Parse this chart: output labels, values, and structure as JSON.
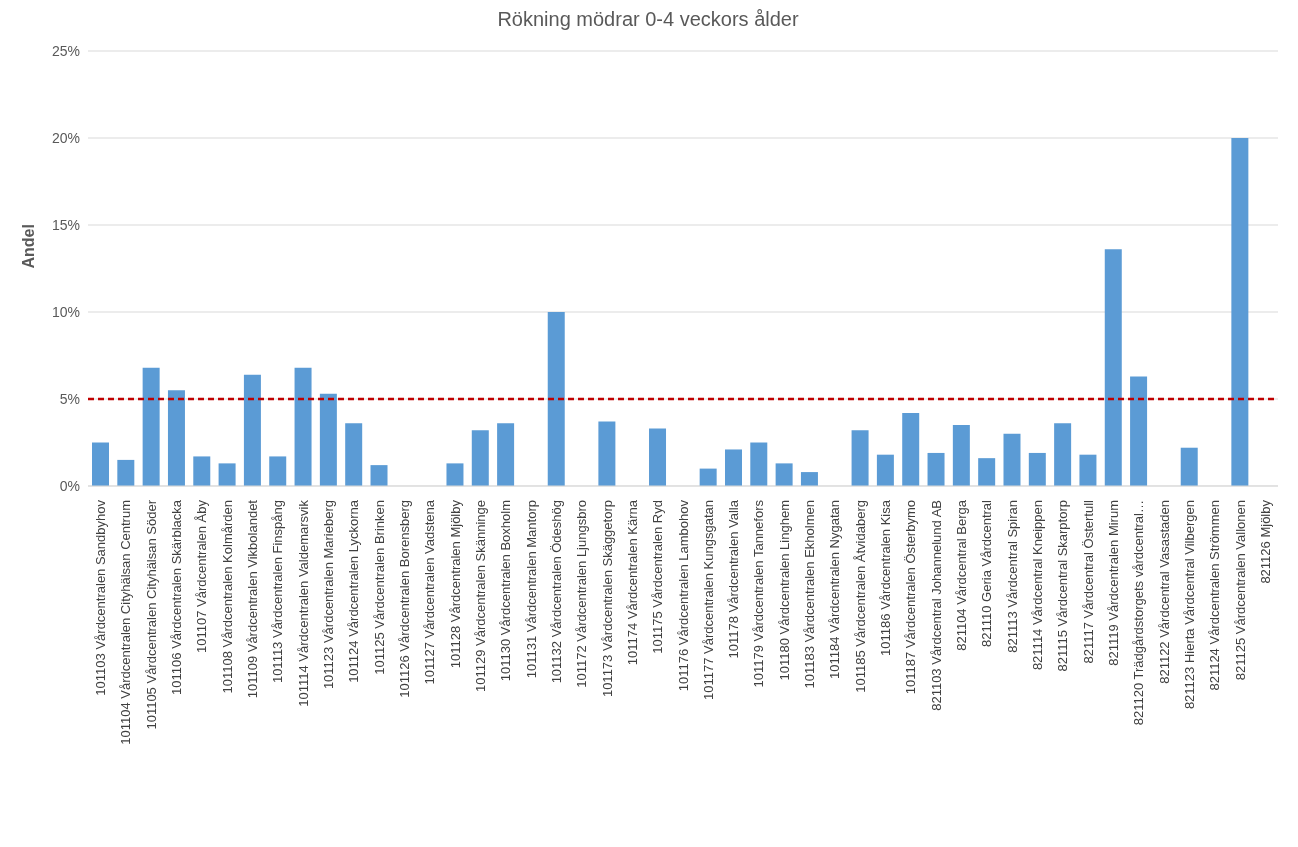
{
  "chart_data": {
    "type": "bar",
    "title": "Rökning mödrar 0-4 veckors ålder",
    "ylabel": "Andel",
    "categories": [
      "101103 Vårdcentralen Sandbyhov",
      "101104 Vårdcentralen Cityhälsan Centrum",
      "101105 Vårdcentralen Cityhälsan Söder",
      "101106 Vårdcentralen Skärblacka",
      "101107 Vårdcentralen Åby",
      "101108 Vårdcentralen Kolmården",
      "101109 Vårdcentralen Vikbolandet",
      "101113 Vårdcentralen Finspång",
      "101114 Vårdcentralen Valdemarsvik",
      "101123 Vårdcentralen Marieberg",
      "101124 Vårdcentralen Lyckorna",
      "101125 Vårdcentralen Brinken",
      "101126 Vårdcentralen Borensberg",
      "101127 Vårdcentralen Vadstena",
      "101128 Vårdcentralen Mjölby",
      "101129 Vårdcentralen Skänninge",
      "101130 Vårdcentralen Boxholm",
      "101131 Vårdcentralen Mantorp",
      "101132 Vårdcentralen Ödeshög",
      "101172 Vårdcentralen Ljungsbro",
      "101173 Vårdcentralen Skäggetorp",
      "101174 Vårdcentralen Kärna",
      "101175 Vårdcentralen Ryd",
      "101176 Vårdcentralen Lambohov",
      "101177 Vårdcentralen Kungsgatan",
      "101178 Vårdcentralen Valla",
      "101179 Vårdcentralen Tannefors",
      "101180 Vårdcentralen Linghem",
      "101183 Vårdcentralen Ekholmen",
      "101184 Vårdcentralen Nygatan",
      "101185 Vårdcentralen Åtvidaberg",
      "101186 Vårdcentralen Kisa",
      "101187 Vårdcentralen Österbymo",
      "821103 Vårdcentral Johannelund AB",
      "821104 Vårdcentral Berga",
      "821110 Geria Vårdcentral",
      "821113 Vårdcentral Spiran",
      "821114 Vårdcentral Kneippen",
      "821115 Vårdcentral Skarptorp",
      "821117 Vårdcentral Östertull",
      "821119 Vårdcentralen Mirum",
      "821120 Trädgårdstorgets vårdcentral…",
      "821122 Vårdcentral Vasastaden",
      "821123 Hierta Vårdcentral Vilbergen",
      "821124 Vårdcentralen Strömmen",
      "821125 Vårdcentralen Vallonen",
      "821126 Mjölby"
    ],
    "values": [
      2.5,
      1.5,
      6.8,
      5.5,
      1.7,
      1.3,
      6.4,
      1.7,
      6.8,
      5.3,
      3.6,
      1.2,
      0,
      0,
      1.3,
      3.2,
      3.6,
      0,
      10,
      0,
      3.7,
      0,
      3.3,
      0,
      1.0,
      2.1,
      2.5,
      1.3,
      0.8,
      0,
      3.2,
      1.8,
      4.2,
      1.9,
      3.5,
      1.6,
      3.0,
      1.9,
      3.6,
      1.8,
      13.6,
      6.3,
      0,
      2.2,
      0,
      20,
      0
    ],
    "color": "#5b9bd5",
    "ylim": [
      0,
      25
    ],
    "yticks": [
      {
        "value": 0,
        "label": "0%"
      },
      {
        "value": 5,
        "label": "5%"
      },
      {
        "value": 10,
        "label": "10%"
      },
      {
        "value": 15,
        "label": "15%"
      },
      {
        "value": 20,
        "label": "20%"
      },
      {
        "value": 25,
        "label": "25%"
      }
    ],
    "grid": "y",
    "legend": false,
    "ref_lines": [
      {
        "axis": "y",
        "value": 5,
        "color": "#c00000",
        "line_style": "dashed"
      }
    ]
  }
}
